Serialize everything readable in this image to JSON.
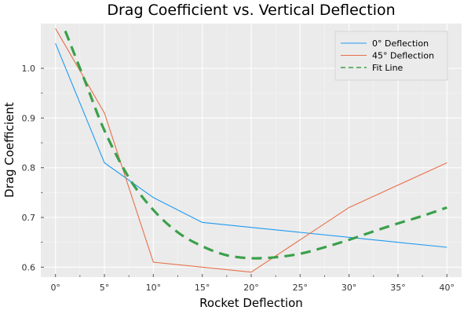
{
  "chart_data": {
    "type": "line",
    "title": "Drag Coefficient vs. Vertical Deflection",
    "xlabel": "Rocket Deflection",
    "ylabel": "Drag Coefficient",
    "xlim": [
      -1.5,
      41.5
    ],
    "ylim": [
      0.58,
      1.09
    ],
    "x_ticks": [
      0,
      5,
      10,
      15,
      20,
      25,
      30,
      35,
      40
    ],
    "x_tick_labels": [
      "0°",
      "5°",
      "10°",
      "15°",
      "20°",
      "25°",
      "30°",
      "35°",
      "40°"
    ],
    "y_ticks": [
      0.6,
      0.7,
      0.8,
      0.9,
      1.0
    ],
    "y_tick_labels": [
      "0.6",
      "0.7",
      "0.8",
      "0.9",
      "1.0"
    ],
    "grid": true,
    "legend_position": "top-right",
    "series": [
      {
        "name": "0° Deflection",
        "color": "#1f9bf0",
        "style": "solid",
        "x": [
          0,
          5,
          10,
          15,
          20,
          25,
          30,
          35,
          40
        ],
        "y": [
          1.05,
          0.81,
          0.74,
          0.69,
          0.68,
          0.67,
          0.66,
          0.65,
          0.64
        ]
      },
      {
        "name": "45° Deflection",
        "color": "#e8704a",
        "style": "solid",
        "x": [
          0,
          5,
          10,
          20,
          30,
          40
        ],
        "y": [
          1.08,
          0.91,
          0.61,
          0.59,
          0.72,
          0.81
        ]
      },
      {
        "name": "Fit Line",
        "color": "#3aa04a",
        "style": "dashed",
        "x": [
          1,
          3,
          5,
          7.5,
          10,
          12.5,
          15,
          17.5,
          20,
          22.5,
          25,
          27.5,
          30,
          32.5,
          35,
          37.5,
          40
        ],
        "y": [
          1.075,
          0.975,
          0.875,
          0.78,
          0.715,
          0.67,
          0.642,
          0.624,
          0.618,
          0.62,
          0.627,
          0.64,
          0.655,
          0.672,
          0.688,
          0.703,
          0.72
        ]
      }
    ]
  }
}
